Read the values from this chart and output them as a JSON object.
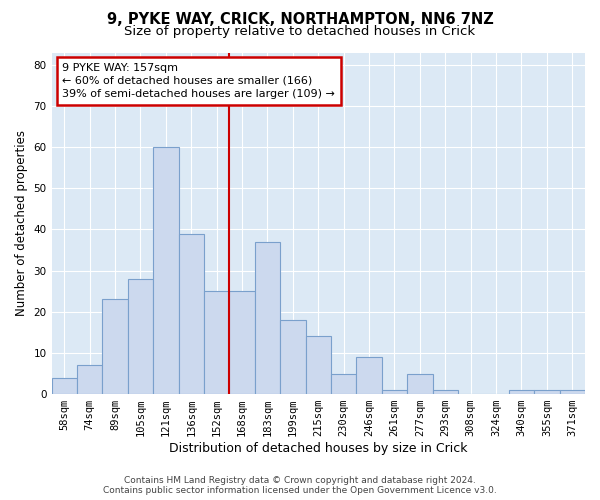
{
  "title_line1": "9, PYKE WAY, CRICK, NORTHAMPTON, NN6 7NZ",
  "title_line2": "Size of property relative to detached houses in Crick",
  "xlabel": "Distribution of detached houses by size in Crick",
  "ylabel": "Number of detached properties",
  "bar_labels": [
    "58sqm",
    "74sqm",
    "89sqm",
    "105sqm",
    "121sqm",
    "136sqm",
    "152sqm",
    "168sqm",
    "183sqm",
    "199sqm",
    "215sqm",
    "230sqm",
    "246sqm",
    "261sqm",
    "277sqm",
    "293sqm",
    "308sqm",
    "324sqm",
    "340sqm",
    "355sqm",
    "371sqm"
  ],
  "bar_heights": [
    4,
    7,
    23,
    28,
    60,
    39,
    25,
    25,
    37,
    18,
    14,
    5,
    9,
    1,
    5,
    1,
    0,
    0,
    1,
    1,
    1
  ],
  "bar_color": "#ccd9ee",
  "bar_edgecolor": "#7aa0cc",
  "vline_x": 6.5,
  "vline_color": "#cc0000",
  "annotation_text": "9 PYKE WAY: 157sqm\n← 60% of detached houses are smaller (166)\n39% of semi-detached houses are larger (109) →",
  "footer_line1": "Contains HM Land Registry data © Crown copyright and database right 2024.",
  "footer_line2": "Contains public sector information licensed under the Open Government Licence v3.0.",
  "ylim": [
    0,
    83
  ],
  "yticks": [
    0,
    10,
    20,
    30,
    40,
    50,
    60,
    70,
    80
  ],
  "plot_bg_color": "#dce9f5",
  "grid_color": "#ffffff",
  "title1_fontsize": 10.5,
  "title2_fontsize": 9.5,
  "xlabel_fontsize": 9,
  "ylabel_fontsize": 8.5,
  "tick_fontsize": 7.5,
  "footer_fontsize": 6.5,
  "annot_fontsize": 8
}
